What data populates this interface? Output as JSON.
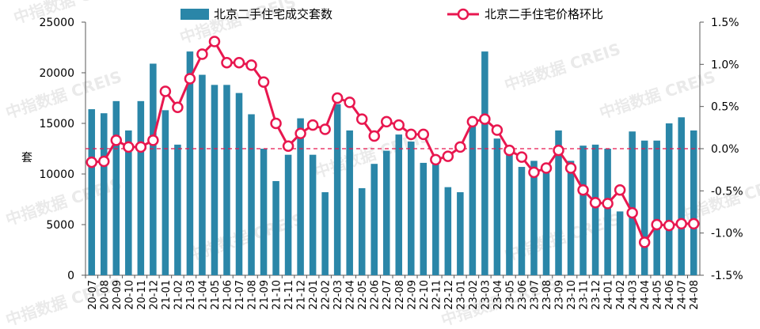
{
  "chart_data": {
    "type": "bar+line",
    "title": "",
    "categories": [
      "20-07",
      "20-08",
      "20-09",
      "20-10",
      "20-11",
      "20-12",
      "21-01",
      "21-02",
      "21-03",
      "21-04",
      "21-05",
      "21-06",
      "21-07",
      "21-08",
      "21-09",
      "21-10",
      "21-11",
      "21-12",
      "22-01",
      "22-02",
      "22-03",
      "22-04",
      "22-05",
      "22-06",
      "22-07",
      "22-08",
      "22-09",
      "22-10",
      "22-11",
      "22-12",
      "23-01",
      "23-02",
      "23-03",
      "23-04",
      "23-05",
      "23-06",
      "23-07",
      "23-08",
      "23-09",
      "23-10",
      "23-11",
      "23-12",
      "24-01",
      "24-02",
      "24-03",
      "24-04",
      "24-05",
      "24-06",
      "24-07",
      "24-08"
    ],
    "series": [
      {
        "name": "北京二手住宅成交套数",
        "kind": "bar",
        "axis": "left",
        "color": "#2a86a8",
        "values": [
          16400,
          16000,
          17200,
          14300,
          17200,
          20900,
          16300,
          12900,
          22100,
          19800,
          18800,
          18800,
          18000,
          15900,
          12500,
          9300,
          11900,
          15500,
          11900,
          8200,
          16900,
          14300,
          8600,
          11000,
          12300,
          13900,
          13200,
          11100,
          11300,
          8700,
          8200,
          15200,
          22100,
          13500,
          12800,
          10700,
          11300,
          10200,
          14300,
          11300,
          12800,
          12900,
          12500,
          6300,
          14200,
          13300,
          13300,
          15000,
          15600,
          14300
        ]
      },
      {
        "name": "北京二手住宅价格环比",
        "kind": "line",
        "axis": "right",
        "color": "#e8174f",
        "values": [
          -0.16,
          -0.15,
          0.1,
          0.02,
          0.02,
          0.1,
          0.68,
          0.49,
          0.83,
          1.12,
          1.27,
          1.02,
          1.02,
          0.99,
          0.79,
          0.3,
          0.03,
          0.18,
          0.28,
          0.23,
          0.6,
          0.55,
          0.35,
          0.15,
          0.32,
          0.28,
          0.17,
          0.17,
          -0.13,
          -0.09,
          0.02,
          0.32,
          0.35,
          0.22,
          -0.02,
          -0.1,
          -0.28,
          -0.23,
          -0.02,
          -0.23,
          -0.49,
          -0.64,
          -0.65,
          -0.49,
          -0.76,
          -1.11,
          -0.9,
          -0.91,
          -0.89,
          -0.89
        ]
      }
    ],
    "left_axis": {
      "label": "套",
      "min": 0,
      "max": 25000,
      "ticks": [
        "0",
        "5000",
        "10000",
        "15000",
        "20000",
        "25000"
      ]
    },
    "right_axis": {
      "label": "",
      "min": -1.5,
      "max": 1.5,
      "ticks": [
        "-1.5%",
        "-1.0%",
        "-0.5%",
        "0.0%",
        "0.5%",
        "1.0%",
        "1.5%"
      ]
    },
    "reference_line": {
      "axis": "right",
      "value": 0.0,
      "color": "#e8174f"
    },
    "legend": {
      "position": "top"
    }
  },
  "watermarks": [
    "中指数据",
    "CREIS"
  ]
}
